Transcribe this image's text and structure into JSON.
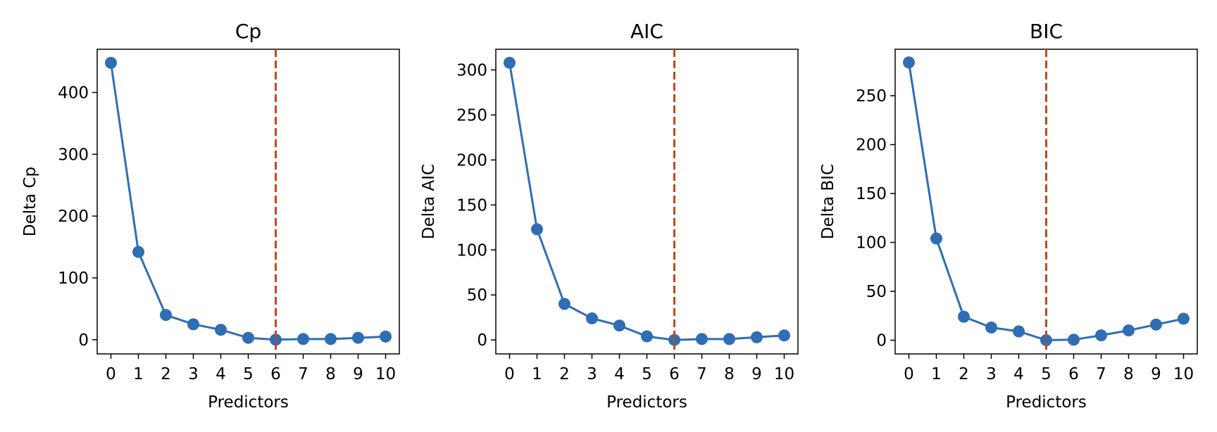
{
  "colors": {
    "series": "#2f6db4",
    "reference_line": "#c8461b"
  },
  "chart_data": [
    {
      "type": "line",
      "title": "Cp",
      "xlabel": "Predictors",
      "ylabel": "Delta Cp",
      "x": [
        0,
        1,
        2,
        3,
        4,
        5,
        6,
        7,
        8,
        9,
        10
      ],
      "xticks": [
        0,
        1,
        2,
        3,
        4,
        5,
        6,
        7,
        8,
        9,
        10
      ],
      "xlim": [
        -0.5,
        10.5
      ],
      "yticks": [
        0,
        100,
        200,
        300,
        400
      ],
      "ylim": [
        -23,
        470
      ],
      "grid": false,
      "series": [
        {
          "values": [
            448,
            142,
            40,
            25,
            16,
            3,
            0,
            1,
            1,
            3,
            5
          ]
        }
      ],
      "reference_line": {
        "orientation": "vertical",
        "x": 6,
        "style": "dashed"
      }
    },
    {
      "type": "line",
      "title": "AIC",
      "xlabel": "Predictors",
      "ylabel": "Delta AIC",
      "x": [
        0,
        1,
        2,
        3,
        4,
        5,
        6,
        7,
        8,
        9,
        10
      ],
      "xticks": [
        0,
        1,
        2,
        3,
        4,
        5,
        6,
        7,
        8,
        9,
        10
      ],
      "xlim": [
        -0.5,
        10.5
      ],
      "yticks": [
        0,
        50,
        100,
        150,
        200,
        250,
        300
      ],
      "ylim": [
        -15.5,
        323
      ],
      "grid": false,
      "series": [
        {
          "values": [
            308,
            123,
            40,
            24,
            16,
            4,
            0,
            1,
            1,
            3,
            5
          ]
        }
      ],
      "reference_line": {
        "orientation": "vertical",
        "x": 6,
        "style": "dashed"
      }
    },
    {
      "type": "line",
      "title": "BIC",
      "xlabel": "Predictors",
      "ylabel": "Delta BIC",
      "x": [
        0,
        1,
        2,
        3,
        4,
        5,
        6,
        7,
        8,
        9,
        10
      ],
      "xticks": [
        0,
        1,
        2,
        3,
        4,
        5,
        6,
        7,
        8,
        9,
        10
      ],
      "xlim": [
        -0.5,
        10.5
      ],
      "yticks": [
        0,
        50,
        100,
        150,
        200,
        250
      ],
      "ylim": [
        -14,
        297.5
      ],
      "grid": false,
      "series": [
        {
          "values": [
            284,
            104,
            24,
            13,
            9,
            0,
            0.5,
            5,
            10,
            16,
            22
          ]
        }
      ],
      "reference_line": {
        "orientation": "vertical",
        "x": 5,
        "style": "dashed"
      }
    }
  ]
}
